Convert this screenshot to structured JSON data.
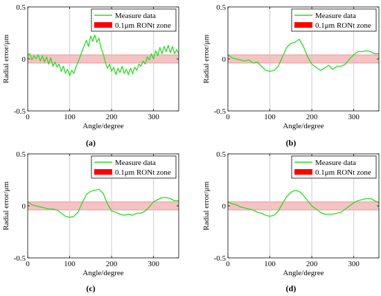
{
  "figure": {
    "colors": {
      "series": "#22dd22",
      "zone_fill": "#f2b8b8",
      "zone_line": "#e06060",
      "legend_patch": "#ff0000",
      "grid": "#cccccc"
    }
  },
  "chart_data": [
    {
      "type": "line",
      "panel_label": "(a)",
      "xlabel": "Angle/degree",
      "ylabel": "Radial error/μm",
      "xlim": [
        0,
        360
      ],
      "ylim": [
        -0.5,
        0.5
      ],
      "xticks": [
        "0",
        "100",
        "200",
        "300"
      ],
      "yticks": [
        "-0.5",
        "0",
        "0.5"
      ],
      "grid": "vertical lines at 100, 200, 300",
      "legend": {
        "position": "top-right",
        "entries": [
          "Measure data",
          "0.1μm RONt zone"
        ]
      },
      "zone": {
        "name": "0.1μm RONt zone",
        "y_range": [
          -0.04,
          0.04
        ]
      },
      "series": [
        {
          "name": "Measure data",
          "x": [
            0,
            5,
            10,
            15,
            20,
            25,
            30,
            35,
            40,
            45,
            50,
            55,
            60,
            65,
            70,
            75,
            80,
            85,
            90,
            95,
            100,
            105,
            110,
            115,
            120,
            125,
            130,
            135,
            140,
            145,
            150,
            155,
            160,
            165,
            170,
            175,
            180,
            185,
            190,
            195,
            200,
            205,
            210,
            215,
            220,
            225,
            230,
            235,
            240,
            245,
            250,
            255,
            260,
            265,
            270,
            275,
            280,
            285,
            290,
            295,
            300,
            305,
            310,
            315,
            320,
            325,
            330,
            335,
            340,
            345,
            350,
            355,
            360
          ],
          "y": [
            0.04,
            0.05,
            -0.01,
            0.03,
            0.0,
            0.04,
            -0.02,
            0.03,
            -0.03,
            0.02,
            -0.05,
            0.01,
            -0.07,
            -0.03,
            -0.08,
            -0.05,
            -0.12,
            -0.07,
            -0.14,
            -0.1,
            -0.16,
            -0.11,
            -0.14,
            -0.08,
            -0.03,
            0.02,
            0.08,
            0.13,
            0.18,
            0.12,
            0.22,
            0.17,
            0.23,
            0.16,
            0.2,
            0.1,
            0.05,
            -0.03,
            -0.09,
            -0.05,
            -0.12,
            -0.08,
            -0.15,
            -0.09,
            -0.13,
            -0.07,
            -0.14,
            -0.1,
            -0.15,
            -0.09,
            -0.14,
            -0.08,
            -0.11,
            -0.05,
            -0.07,
            -0.02,
            -0.05,
            0.02,
            -0.01,
            0.05,
            0.0,
            0.08,
            0.03,
            0.11,
            0.05,
            0.12,
            0.07,
            0.13,
            0.06,
            0.12,
            0.05,
            0.09,
            0.05
          ]
        }
      ]
    },
    {
      "type": "line",
      "panel_label": "(b)",
      "xlabel": "Angle/degree",
      "ylabel": "Radial error/μm",
      "xlim": [
        0,
        360
      ],
      "ylim": [
        -0.5,
        0.5
      ],
      "xticks": [
        "0",
        "100",
        "200",
        "300"
      ],
      "yticks": [
        "-0.5",
        "0",
        "0.5"
      ],
      "grid": "vertical lines at 100, 200, 300",
      "legend": {
        "position": "top-right",
        "entries": [
          "Measure data",
          "0.1μm RONt zone"
        ]
      },
      "zone": {
        "name": "0.1μm RONt zone",
        "y_range": [
          -0.04,
          0.04
        ]
      },
      "series": [
        {
          "name": "Measure data",
          "x": [
            0,
            10,
            20,
            30,
            40,
            50,
            60,
            70,
            80,
            90,
            100,
            110,
            120,
            130,
            140,
            150,
            160,
            170,
            180,
            190,
            200,
            210,
            220,
            230,
            240,
            250,
            260,
            270,
            280,
            290,
            300,
            310,
            320,
            330,
            340,
            350,
            360
          ],
          "y": [
            0.04,
            0.01,
            0.0,
            -0.01,
            -0.02,
            -0.01,
            -0.04,
            -0.03,
            -0.07,
            -0.11,
            -0.12,
            -0.11,
            -0.07,
            0.02,
            0.11,
            0.15,
            0.16,
            0.19,
            0.12,
            0.02,
            -0.05,
            -0.08,
            -0.11,
            -0.09,
            -0.06,
            -0.1,
            -0.07,
            -0.07,
            -0.05,
            0.0,
            0.04,
            0.07,
            0.07,
            0.08,
            0.07,
            0.05,
            0.05
          ]
        }
      ]
    },
    {
      "type": "line",
      "panel_label": "(c)",
      "xlabel": "Angle/degree",
      "ylabel": "Radial error/μm",
      "xlim": [
        0,
        360
      ],
      "ylim": [
        -0.5,
        0.5
      ],
      "xticks": [
        "0",
        "100",
        "200",
        "300"
      ],
      "yticks": [
        "-0.5",
        "0",
        "0.5"
      ],
      "grid": "vertical lines at 100, 200, 300",
      "legend": {
        "position": "top-right",
        "entries": [
          "Measure data",
          "0.1μm RONt zone"
        ]
      },
      "zone": {
        "name": "0.1μm RONt zone",
        "y_range": [
          -0.04,
          0.04
        ]
      },
      "series": [
        {
          "name": "Measure data",
          "x": [
            0,
            10,
            20,
            30,
            40,
            50,
            60,
            70,
            80,
            90,
            100,
            110,
            120,
            130,
            140,
            150,
            160,
            170,
            180,
            190,
            200,
            210,
            220,
            230,
            240,
            250,
            260,
            270,
            280,
            290,
            300,
            310,
            320,
            330,
            340,
            350,
            360
          ],
          "y": [
            0.04,
            0.01,
            0.0,
            -0.01,
            -0.02,
            -0.03,
            -0.03,
            -0.04,
            -0.07,
            -0.1,
            -0.11,
            -0.1,
            -0.06,
            0.03,
            0.11,
            0.14,
            0.15,
            0.16,
            0.12,
            0.02,
            -0.05,
            -0.06,
            -0.08,
            -0.09,
            -0.08,
            -0.09,
            -0.07,
            -0.07,
            -0.05,
            -0.01,
            0.04,
            0.06,
            0.08,
            0.08,
            0.07,
            0.05,
            0.05
          ]
        }
      ]
    },
    {
      "type": "line",
      "panel_label": "(d)",
      "xlabel": "Angle/degree",
      "ylabel": "Radial error/μm",
      "xlim": [
        0,
        360
      ],
      "ylim": [
        -0.5,
        0.5
      ],
      "xticks": [
        "0",
        "100",
        "200",
        "300"
      ],
      "yticks": [
        "-0.5",
        "0",
        "0.5"
      ],
      "grid": "vertical lines at 100, 200, 300",
      "legend": {
        "position": "top-right",
        "entries": [
          "Measure data",
          "0.1μm RONt zone"
        ]
      },
      "zone": {
        "name": "0.1μm RONt zone",
        "y_range": [
          -0.04,
          0.04
        ]
      },
      "series": [
        {
          "name": "Measure data",
          "x": [
            0,
            10,
            20,
            30,
            40,
            50,
            60,
            70,
            80,
            90,
            100,
            110,
            120,
            130,
            140,
            150,
            160,
            170,
            180,
            190,
            200,
            210,
            220,
            230,
            240,
            250,
            260,
            270,
            280,
            290,
            300,
            310,
            320,
            330,
            340,
            350,
            360
          ],
          "y": [
            0.04,
            0.02,
            0.01,
            -0.01,
            -0.02,
            -0.03,
            -0.04,
            -0.06,
            -0.07,
            -0.09,
            -0.1,
            -0.09,
            -0.05,
            0.02,
            0.09,
            0.13,
            0.15,
            0.14,
            0.1,
            0.05,
            0.0,
            -0.03,
            -0.06,
            -0.08,
            -0.08,
            -0.08,
            -0.07,
            -0.06,
            -0.03,
            0.0,
            0.03,
            0.05,
            0.06,
            0.07,
            0.07,
            0.05,
            0.03
          ]
        }
      ]
    }
  ]
}
